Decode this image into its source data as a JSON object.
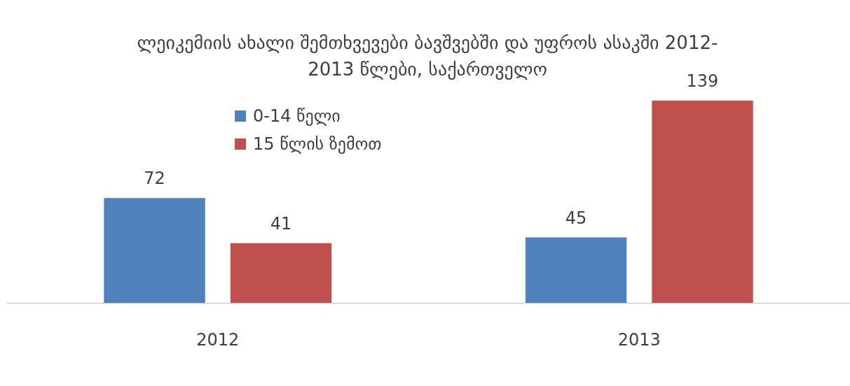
{
  "chart_data": {
    "type": "bar",
    "title": "ლეიკემიის ახალი შემთხვევები ბავშვებში და უფროს ასაკში 2012-2013 წლები, საქართველო",
    "categories": [
      "2012",
      "2013"
    ],
    "series": [
      {
        "name": "0-14 წელი",
        "color": "#4f81bd",
        "values": [
          72,
          45
        ]
      },
      {
        "name": "15 წლის ზემოთ",
        "color": "#c0504d",
        "values": [
          41,
          139
        ]
      }
    ],
    "data_labels": true,
    "legend": "top left",
    "grid": false
  }
}
